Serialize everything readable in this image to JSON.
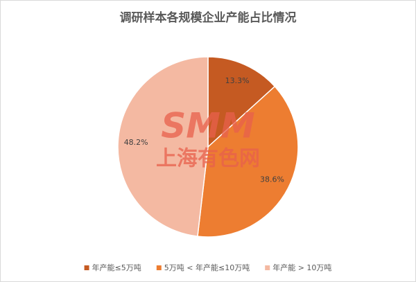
{
  "chart_data": {
    "type": "pie",
    "title": "调研样本各规模企业产能占比情况",
    "categories": [
      "年产能≤5万吨",
      "5万吨 < 年产能≤10万吨",
      "年产能 > 10万吨"
    ],
    "values": [
      13.3,
      38.6,
      48.2
    ],
    "value_labels": [
      "13.3%",
      "38.6%",
      "48.2%"
    ],
    "colors": [
      "#c55a22",
      "#ed7d31",
      "#f4b9a2"
    ],
    "legend": "bottom",
    "watermark": {
      "logo": "SMM",
      "text": "上海有色网"
    }
  }
}
